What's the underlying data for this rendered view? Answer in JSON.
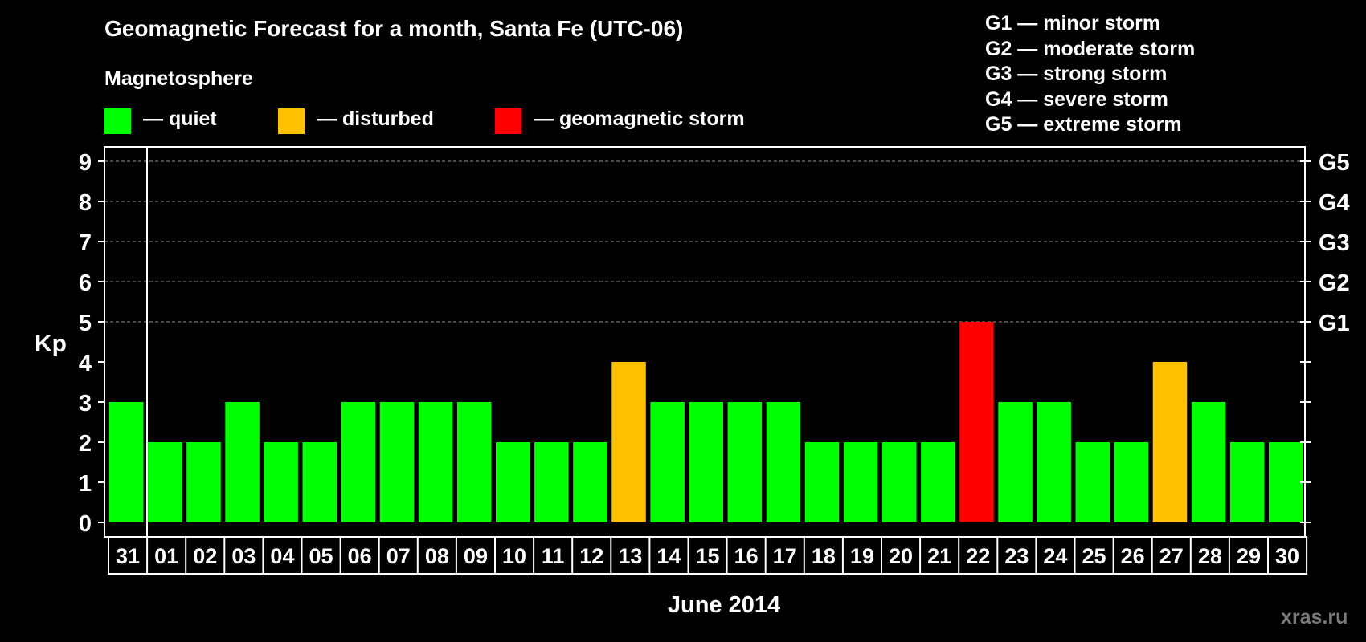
{
  "chart_data": {
    "type": "bar",
    "title": "Geomagnetic Forecast for a month, Santa Fe (UTC-06)",
    "ylabel": "Kp",
    "xlabel": "June 2014",
    "ylim": [
      0,
      9
    ],
    "y_ticks": [
      "0",
      "1",
      "2",
      "3",
      "4",
      "5",
      "6",
      "7",
      "8",
      "9"
    ],
    "right_axis_labels": [
      {
        "kp": 5,
        "label": "G1"
      },
      {
        "kp": 6,
        "label": "G2"
      },
      {
        "kp": 7,
        "label": "G3"
      },
      {
        "kp": 8,
        "label": "G4"
      },
      {
        "kp": 9,
        "label": "G5"
      }
    ],
    "grid": "dashed horizontal at Kp 5-9",
    "categories": [
      "31",
      "01",
      "02",
      "03",
      "04",
      "05",
      "06",
      "07",
      "08",
      "09",
      "10",
      "11",
      "12",
      "13",
      "14",
      "15",
      "16",
      "17",
      "18",
      "19",
      "20",
      "21",
      "22",
      "23",
      "24",
      "25",
      "26",
      "27",
      "28",
      "29",
      "30"
    ],
    "values": [
      3,
      2,
      2,
      3,
      2,
      2,
      3,
      3,
      3,
      3,
      2,
      2,
      2,
      4,
      3,
      3,
      3,
      3,
      2,
      2,
      2,
      2,
      5,
      3,
      3,
      2,
      2,
      4,
      3,
      2,
      2
    ],
    "state_colors": {
      "quiet": "#00ff00",
      "disturbed": "#ffc000",
      "storm": "#ff0000"
    },
    "legend_title": "Magnetosphere",
    "legend": [
      {
        "key": "quiet",
        "label": "— quiet",
        "color": "#00ff00"
      },
      {
        "key": "disturbed",
        "label": "— disturbed",
        "color": "#ffc000"
      },
      {
        "key": "storm",
        "label": "— geomagnetic storm",
        "color": "#ff0000"
      }
    ],
    "g_scale": [
      "G1 — minor storm",
      "G2 — moderate storm",
      "G3 — strong storm",
      "G4 — severe storm",
      "G5 — extreme storm"
    ]
  },
  "watermark": "xras.ru"
}
